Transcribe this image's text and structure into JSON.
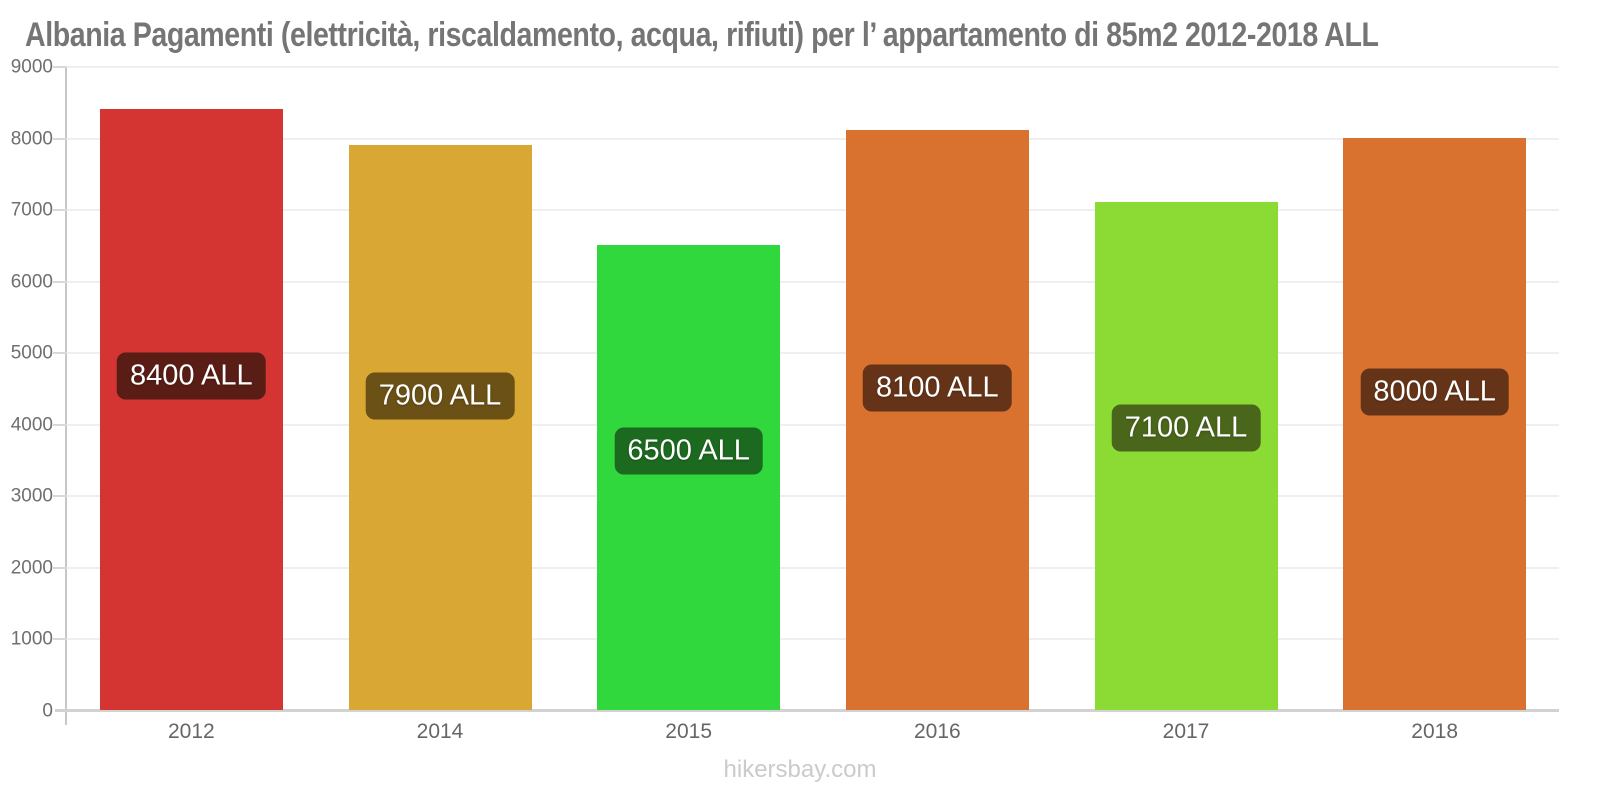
{
  "title": "Albania Pagamenti (elettricità, riscaldamento, acqua, rifiuti) per l’ appartamento di 85m2 2012-2018 ALL",
  "footer": "hikersbay.com",
  "axis": {
    "line_color": "#c6c6c6",
    "grid_color": "#efefef",
    "ylabel_color": "#6f6f6f",
    "xlabel_color": "#666666"
  },
  "chart_data": {
    "type": "bar",
    "title": "Albania Pagamenti (elettricità, riscaldamento, acqua, rifiuti) per l’ appartamento di 85m2 2012-2018 ALL",
    "xlabel": "",
    "ylabel": "",
    "unit": "ALL",
    "categories": [
      "2012",
      "2014",
      "2015",
      "2016",
      "2017",
      "2018"
    ],
    "values": [
      8400,
      7900,
      6500,
      8100,
      7100,
      8000
    ],
    "ylim": [
      0,
      9000
    ],
    "yticks": [
      0,
      1000,
      2000,
      3000,
      4000,
      5000,
      6000,
      7000,
      8000,
      9000
    ],
    "grid": "horizontal",
    "legend": "none",
    "bars": [
      {
        "year": "2012",
        "value": 8400,
        "label": "8400 ALL",
        "color": "#d53532",
        "label_bg": "#591d16"
      },
      {
        "year": "2014",
        "value": 7900,
        "label": "7900 ALL",
        "color": "#d9a834",
        "label_bg": "#6b5116"
      },
      {
        "year": "2015",
        "value": 6500,
        "label": "6500 ALL",
        "color": "#30d83d",
        "label_bg": "#1c6a20"
      },
      {
        "year": "2016",
        "value": 8100,
        "label": "8100 ALL",
        "color": "#d9722f",
        "label_bg": "#653418"
      },
      {
        "year": "2017",
        "value": 7100,
        "label": "7100 ALL",
        "color": "#8cdb35",
        "label_bg": "#4a661b"
      },
      {
        "year": "2018",
        "value": 8000,
        "label": "8000 ALL",
        "color": "#d9722f",
        "label_bg": "#653418"
      }
    ]
  }
}
